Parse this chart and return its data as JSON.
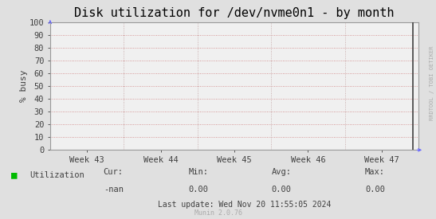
{
  "title": "Disk utilization for /dev/nvme0n1 - by month",
  "ylabel": "% busy",
  "ylim": [
    0,
    100
  ],
  "yticks": [
    0,
    10,
    20,
    30,
    40,
    50,
    60,
    70,
    80,
    90,
    100
  ],
  "xtick_labels": [
    "Week 43",
    "Week 44",
    "Week 45",
    "Week 46",
    "Week 47"
  ],
  "bg_color": "#e0e0e0",
  "plot_bg_color": "#f0f0f0",
  "grid_color_h": "#d08080",
  "grid_color_v": "#c0a0a0",
  "border_color": "#999999",
  "title_fontsize": 11,
  "axis_fontsize": 8,
  "tick_fontsize": 7.5,
  "legend_label": "Utilization",
  "legend_color": "#00bb00",
  "cur_label": "Cur:",
  "cur_value": "-nan",
  "min_label": "Min:",
  "min_value": "0.00",
  "avg_label": "Avg:",
  "avg_value": "0.00",
  "max_label": "Max:",
  "max_value": "0.00",
  "last_update": "Last update: Wed Nov 20 11:55:05 2024",
  "munin_version": "Munin 2.0.76",
  "watermark": "RRDTOOL / TOBI OETIKER",
  "vertical_line_color": "#404040",
  "arrow_color": "#6666ff",
  "text_color": "#404040",
  "stats_color": "#404040",
  "munin_color": "#aaaaaa",
  "watermark_color": "#aaaaaa"
}
